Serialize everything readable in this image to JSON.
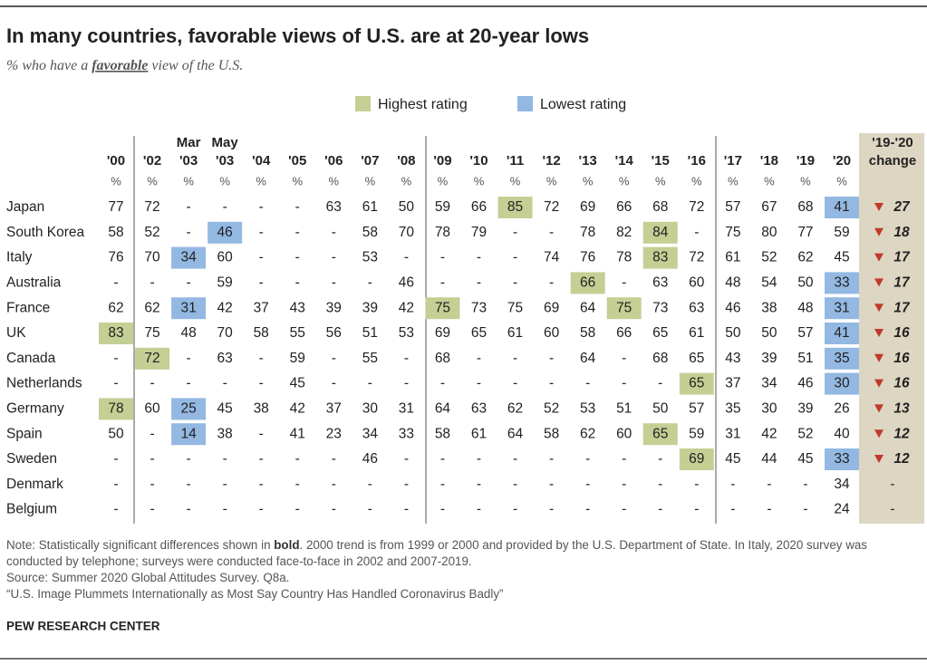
{
  "header": {
    "title": "In many countries, favorable views of U.S. are at 20-year lows",
    "subtitle": [
      "% who have a ",
      "favorable",
      " view of the U.S."
    ]
  },
  "legend": [
    {
      "label": "Highest rating",
      "rating": "highest",
      "color": "#c4cf94"
    },
    {
      "label": "Lowest rating",
      "rating": "lowest",
      "color": "#93b8e2"
    }
  ],
  "table": {
    "columns": [
      "'00",
      "'02",
      "'03",
      "'03",
      "'04",
      "'05",
      "'06",
      "'07",
      "'08",
      "'09",
      "'10",
      "'11",
      "'12",
      "'13",
      "'14",
      "'15",
      "'16",
      "'17",
      "'18",
      "'19",
      "'20"
    ],
    "column_months": {
      "2": "Mar",
      "3": "May"
    },
    "unit": "%",
    "change_header": [
      "'19-'20",
      "change"
    ],
    "rows": [
      {
        "country": "Japan",
        "values": [
          "77",
          "72",
          "-",
          "-",
          "-",
          "-",
          "63",
          "61",
          "50",
          "59",
          "66",
          {
            "value": "85",
            "rating": "highest"
          },
          "72",
          "69",
          "66",
          "68",
          "72",
          "57",
          "67",
          "68",
          {
            "value": "41",
            "rating": "lowest"
          }
        ],
        "change": "27"
      },
      {
        "country": "South Korea",
        "values": [
          "58",
          "52",
          "-",
          {
            "value": "46",
            "rating": "lowest"
          },
          "-",
          "-",
          "-",
          "58",
          "70",
          "78",
          "79",
          "-",
          "-",
          "78",
          "82",
          {
            "value": "84",
            "rating": "highest"
          },
          "-",
          "75",
          "80",
          "77",
          "59"
        ],
        "change": "18"
      },
      {
        "country": "Italy",
        "values": [
          "76",
          "70",
          {
            "value": "34",
            "rating": "lowest"
          },
          "60",
          "-",
          "-",
          "-",
          "53",
          "-",
          "-",
          "-",
          "-",
          "74",
          "76",
          "78",
          {
            "value": "83",
            "rating": "highest"
          },
          "72",
          "61",
          "52",
          "62",
          "45"
        ],
        "change": "17"
      },
      {
        "country": "Australia",
        "values": [
          "-",
          "-",
          "-",
          "59",
          "-",
          "-",
          "-",
          "-",
          "46",
          "-",
          "-",
          "-",
          "-",
          {
            "value": "66",
            "rating": "highest"
          },
          "-",
          "63",
          "60",
          "48",
          "54",
          "50",
          {
            "value": "33",
            "rating": "lowest"
          }
        ],
        "change": "17"
      },
      {
        "country": "France",
        "values": [
          "62",
          "62",
          {
            "value": "31",
            "rating": "lowest"
          },
          "42",
          "37",
          "43",
          "39",
          "39",
          "42",
          {
            "value": "75",
            "rating": "highest"
          },
          "73",
          "75",
          "69",
          "64",
          {
            "value": "75",
            "rating": "highest"
          },
          "73",
          "63",
          "46",
          "38",
          "48",
          {
            "value": "31",
            "rating": "lowest"
          }
        ],
        "change": "17"
      },
      {
        "country": "UK",
        "values": [
          {
            "value": "83",
            "rating": "highest"
          },
          "75",
          "48",
          "70",
          "58",
          "55",
          "56",
          "51",
          "53",
          "69",
          "65",
          "61",
          "60",
          "58",
          "66",
          "65",
          "61",
          "50",
          "50",
          "57",
          {
            "value": "41",
            "rating": "lowest"
          }
        ],
        "change": "16"
      },
      {
        "country": "Canada",
        "values": [
          "-",
          {
            "value": "72",
            "rating": "highest"
          },
          "-",
          "63",
          "-",
          "59",
          "-",
          "55",
          "-",
          "68",
          "-",
          "-",
          "-",
          "64",
          "-",
          "68",
          "65",
          "43",
          "39",
          "51",
          {
            "value": "35",
            "rating": "lowest"
          }
        ],
        "change": "16"
      },
      {
        "country": "Netherlands",
        "values": [
          "-",
          "-",
          "-",
          "-",
          "-",
          "45",
          "-",
          "-",
          "-",
          "-",
          "-",
          "-",
          "-",
          "-",
          "-",
          "-",
          {
            "value": "65",
            "rating": "highest"
          },
          "37",
          "34",
          "46",
          {
            "value": "30",
            "rating": "lowest"
          }
        ],
        "change": "16"
      },
      {
        "country": "Germany",
        "values": [
          {
            "value": "78",
            "rating": "highest"
          },
          "60",
          {
            "value": "25",
            "rating": "lowest"
          },
          "45",
          "38",
          "42",
          "37",
          "30",
          "31",
          "64",
          "63",
          "62",
          "52",
          "53",
          "51",
          "50",
          "57",
          "35",
          "30",
          "39",
          "26"
        ],
        "change": "13"
      },
      {
        "country": "Spain",
        "values": [
          "50",
          "-",
          {
            "value": "14",
            "rating": "lowest"
          },
          "38",
          "-",
          "41",
          "23",
          "34",
          "33",
          "58",
          "61",
          "64",
          "58",
          "62",
          "60",
          {
            "value": "65",
            "rating": "highest"
          },
          "59",
          "31",
          "42",
          "52",
          "40"
        ],
        "change": "12"
      },
      {
        "country": "Sweden",
        "values": [
          "-",
          "-",
          "-",
          "-",
          "-",
          "-",
          "-",
          "46",
          "-",
          "-",
          "-",
          "-",
          "-",
          "-",
          "-",
          "-",
          {
            "value": "69",
            "rating": "highest"
          },
          "45",
          "44",
          "45",
          {
            "value": "33",
            "rating": "lowest"
          }
        ],
        "change": "12"
      },
      {
        "country": "Denmark",
        "values": [
          "-",
          "-",
          "-",
          "-",
          "-",
          "-",
          "-",
          "-",
          "-",
          "-",
          "-",
          "-",
          "-",
          "-",
          "-",
          "-",
          "-",
          "-",
          "-",
          "-",
          "34"
        ],
        "change": "-"
      },
      {
        "country": "Belgium",
        "values": [
          "-",
          "-",
          "-",
          "-",
          "-",
          "-",
          "-",
          "-",
          "-",
          "-",
          "-",
          "-",
          "-",
          "-",
          "-",
          "-",
          "-",
          "-",
          "-",
          "-",
          "24"
        ],
        "change": "-"
      }
    ]
  },
  "footer": {
    "note": [
      "Note: Statistically significant differences shown in ",
      "bold",
      ". 2000 trend is from 1999 or 2000 and provided by the U.S. Department of State. In Italy, 2020 survey was conducted by telephone; surveys were conducted face-to-face in 2002 and 2007-2019."
    ],
    "source": "Source: Summer 2020 Global Attitudes Survey. Q8a.",
    "report": "“U.S. Image Plummets Internationally as Most Say Country Has Handled Coronavirus Badly”",
    "org": "PEW RESEARCH CENTER"
  }
}
